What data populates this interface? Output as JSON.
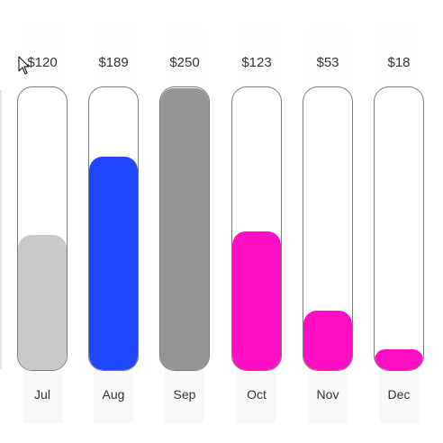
{
  "chart_data": {
    "type": "bar",
    "title": "",
    "xlabel": "",
    "ylabel": "",
    "ylim": [
      0,
      250
    ],
    "categories": [
      "Jul",
      "Aug",
      "Sep",
      "Oct",
      "Nov",
      "Dec"
    ],
    "values": [
      120,
      189,
      250,
      123,
      53,
      18
    ],
    "value_labels": [
      "$120",
      "$189",
      "$250",
      "$123",
      "$53",
      "$18"
    ],
    "colors": [
      "#c9c9c9",
      "#1f47ff",
      "#959595",
      "#ff0fc3",
      "#ff0fc3",
      "#ff0fc3"
    ],
    "track_color": "#ffffff",
    "track_border_color": "#7a7a7a"
  }
}
